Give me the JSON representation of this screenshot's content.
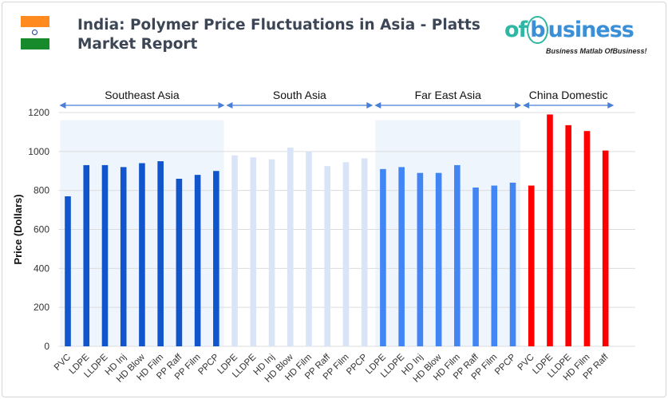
{
  "header": {
    "title": "India: Polymer Price Fluctuations in Asia - Platts Market Report",
    "flag_colors": [
      "#ff8a1f",
      "#ffffff",
      "#178a2c"
    ],
    "logo": {
      "text_a": "of",
      "text_b": "b",
      "text_c": "usiness",
      "tagline": "Business Matlab OfBusiness!"
    }
  },
  "chart_data": {
    "type": "bar",
    "title": "India: Polymer Price Fluctuations in Asia - Platts Market Report",
    "xlabel": "",
    "ylabel": "Price (Dollars)",
    "ylim": [
      0,
      1200
    ],
    "yticks": [
      0,
      200,
      400,
      600,
      800,
      1000,
      1200
    ],
    "grid": true,
    "groups": [
      {
        "name": "Southeast Asia",
        "color": "#1155cc",
        "shaded": true,
        "categories": [
          "PVC",
          "LDPE",
          "LLDPE",
          "HD Inj",
          "HD Blow",
          "HD Film",
          "PP Raff",
          "PP Film",
          "PPCP"
        ],
        "values": [
          770,
          930,
          930,
          920,
          940,
          950,
          860,
          880,
          900
        ]
      },
      {
        "name": "South Asia",
        "color": "#d9e5f7",
        "shaded": false,
        "categories": [
          "LDPE",
          "LLDPE",
          "HD Inj",
          "HD Blow",
          "HD Film",
          "PP Raff",
          "PP Film",
          "PPCP"
        ],
        "values": [
          980,
          970,
          960,
          1020,
          1000,
          925,
          945,
          965
        ]
      },
      {
        "name": "Far East Asia",
        "color": "#4285f4",
        "shaded": true,
        "categories": [
          "LDPE",
          "LLDPE",
          "HD Inj",
          "HD Blow",
          "HD Film",
          "PP Raff",
          "PP Film",
          "PPCP"
        ],
        "values": [
          910,
          920,
          890,
          890,
          930,
          815,
          825,
          840
        ]
      },
      {
        "name": "China Domestic",
        "color": "#ff0000",
        "shaded": false,
        "categories": [
          "PVC",
          "LDPE",
          "LLDPE",
          "HD Film",
          "PP Raff"
        ],
        "values": [
          825,
          1190,
          1135,
          1105,
          1005
        ]
      }
    ]
  }
}
